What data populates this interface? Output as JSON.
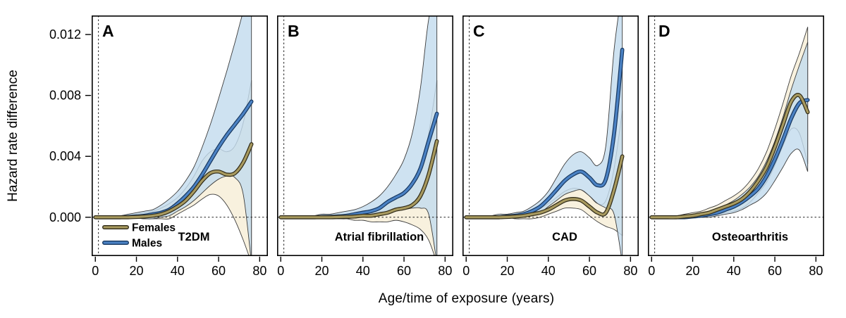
{
  "figure": {
    "background": "#ffffff"
  },
  "chart_data": {
    "type": "line",
    "title": "",
    "xlabel": "Age/time of exposure (years)",
    "ylabel": "Hazard rate difference",
    "x_ticks": [
      0,
      20,
      40,
      60,
      80
    ],
    "y_ticks": [
      0,
      0.004,
      0.008,
      0.012
    ],
    "y_tick_labels": [
      "0.000",
      "0.004",
      "0.008",
      "0.012"
    ],
    "xlim": [
      -1.8,
      84
    ],
    "ylim": [
      -0.00255,
      0.01325
    ],
    "grid": false,
    "reference_lines": {
      "horizontal_y": 0,
      "vertical_x": 1.5,
      "style": "dashed"
    },
    "legend": {
      "position": "inside-panel-A-bottom-left",
      "entries": [
        {
          "label": "Females",
          "color": "#a89a5f"
        },
        {
          "label": "Males",
          "color": "#4b82c4"
        }
      ]
    },
    "colors": {
      "female_line": "#a89a5f",
      "female_edge": "#2f2a18",
      "female_band": "#f8f1de",
      "male_line": "#4b82c4",
      "male_edge": "#16365e",
      "male_band": "#c3dcee",
      "band_edge": "#3c3c3c"
    },
    "panels": [
      {
        "letter": "A",
        "condition": "T2DM",
        "x": [
          0,
          4,
          8,
          12,
          16,
          20,
          24,
          28,
          32,
          36,
          40,
          44,
          48,
          52,
          56,
          60,
          64,
          68,
          72,
          76
        ],
        "series": [
          {
            "name": "Females",
            "y": [
              0,
              0,
              0,
              0,
              0,
              2e-05,
              5e-05,
              0.0001,
              0.0002,
              0.0004,
              0.0007,
              0.0011,
              0.0017,
              0.0024,
              0.0029,
              0.003,
              0.0028,
              0.0029,
              0.0036,
              0.0048
            ],
            "ci_lo": [
              0,
              0,
              0,
              0,
              0,
              -5e-05,
              -0.0001,
              -0.0001,
              -0.0001,
              -0.0001,
              0.0002,
              0.0005,
              0.0008,
              0.0012,
              0.0015,
              0.0014,
              0.0008,
              -0.0002,
              -0.0015,
              -0.003
            ],
            "ci_hi": [
              0.0001,
              0.0001,
              0.0001,
              0.0001,
              0.0001,
              0.0002,
              0.0003,
              0.0004,
              0.0006,
              0.0009,
              0.0013,
              0.0019,
              0.0027,
              0.0037,
              0.0043,
              0.0045,
              0.0043,
              0.0047,
              0.0062,
              0.009
            ]
          },
          {
            "name": "Males",
            "y": [
              0,
              0,
              0,
              0,
              2e-05,
              5e-05,
              0.0001,
              0.0002,
              0.0003,
              0.0005,
              0.0009,
              0.0014,
              0.002,
              0.0028,
              0.0037,
              0.0046,
              0.0054,
              0.0061,
              0.0068,
              0.0076
            ],
            "ci_lo": [
              0,
              0,
              0,
              0,
              0,
              -5e-05,
              -0.0001,
              -0.0001,
              0,
              0.0001,
              0.0004,
              0.0007,
              0.0011,
              0.0016,
              0.0021,
              0.0025,
              0.0027,
              0.0026,
              0.0015,
              -0.003
            ],
            "ci_hi": [
              0.0001,
              0.0001,
              0.0001,
              0.0001,
              0.0002,
              0.0003,
              0.0004,
              0.0005,
              0.0008,
              0.0012,
              0.0017,
              0.0024,
              0.0033,
              0.0046,
              0.0061,
              0.0078,
              0.0096,
              0.0115,
              0.0135,
              0.015
            ]
          }
        ]
      },
      {
        "letter": "B",
        "condition": "Atrial fibrillation",
        "x": [
          0,
          4,
          8,
          12,
          16,
          20,
          24,
          28,
          32,
          36,
          40,
          44,
          48,
          52,
          56,
          60,
          64,
          68,
          72,
          76
        ],
        "series": [
          {
            "name": "Females",
            "y": [
              0,
              0,
              0,
              0,
              0,
              0,
              0,
              2e-05,
              3e-05,
              5e-05,
              0.0001,
              0.0001,
              0.0002,
              0.0003,
              0.0005,
              0.0006,
              0.0008,
              0.0014,
              0.0028,
              0.005
            ],
            "ci_lo": [
              0,
              0,
              0,
              0,
              0,
              0,
              0,
              -0.0001,
              -0.0001,
              -0.0002,
              -0.0002,
              -0.0003,
              -0.0003,
              -0.0003,
              -0.0002,
              -0.0003,
              -0.0005,
              -0.0008,
              -0.0015,
              -0.003
            ],
            "ci_hi": [
              0.0001,
              0.0001,
              0.0001,
              0.0001,
              0.0001,
              0.0001,
              0.0001,
              0.0002,
              0.0002,
              0.0003,
              0.0004,
              0.0005,
              0.0007,
              0.0009,
              0.0012,
              0.0015,
              0.002,
              0.0032,
              0.0055,
              0.009
            ]
          },
          {
            "name": "Males",
            "y": [
              0,
              0,
              0,
              0,
              0,
              2e-05,
              3e-05,
              5e-05,
              0.0001,
              0.0002,
              0.0003,
              0.0004,
              0.0006,
              0.001,
              0.0013,
              0.0016,
              0.0022,
              0.0032,
              0.005,
              0.0068
            ],
            "ci_lo": [
              0,
              0,
              0,
              0,
              0,
              0,
              -0.0001,
              -0.0001,
              -0.0001,
              0,
              0.0001,
              0.0001,
              0.0002,
              0.0003,
              0.0004,
              0.0005,
              0.0006,
              0.0006,
              0.0002,
              -0.003
            ],
            "ci_hi": [
              0.0001,
              0.0001,
              0.0001,
              0.0001,
              0.0001,
              0.0002,
              0.0002,
              0.0003,
              0.0004,
              0.0005,
              0.0007,
              0.001,
              0.0014,
              0.002,
              0.0028,
              0.0038,
              0.0055,
              0.0085,
              0.013,
              0.015
            ]
          }
        ]
      },
      {
        "letter": "C",
        "condition": "CAD",
        "x": [
          0,
          4,
          8,
          12,
          16,
          20,
          24,
          28,
          32,
          36,
          40,
          44,
          48,
          52,
          56,
          60,
          64,
          68,
          72,
          76
        ],
        "series": [
          {
            "name": "Females",
            "y": [
              0,
              0,
              0,
              0,
              0,
              2e-05,
              5e-05,
              0.0001,
              0.0002,
              0.0003,
              0.0005,
              0.0008,
              0.0011,
              0.0012,
              0.0011,
              0.0007,
              0.0003,
              0.0003,
              0.0018,
              0.004
            ],
            "ci_lo": [
              0,
              0,
              0,
              0,
              0,
              0,
              -0.0001,
              -0.0001,
              -0.0001,
              0,
              0.0002,
              0.0004,
              0.0006,
              0.0006,
              0.0005,
              0.0001,
              -0.0003,
              -0.0006,
              -0.0008,
              -0.0012
            ],
            "ci_hi": [
              0.0001,
              0.0001,
              0.0001,
              0.0001,
              0.0001,
              0.0002,
              0.0002,
              0.0003,
              0.0004,
              0.0006,
              0.0009,
              0.0013,
              0.0017,
              0.0019,
              0.0018,
              0.0014,
              0.0009,
              0.0011,
              0.0032,
              0.007
            ]
          },
          {
            "name": "Males",
            "y": [
              0,
              0,
              0,
              0,
              0,
              5e-05,
              0.0001,
              0.0002,
              0.0004,
              0.0007,
              0.0012,
              0.0018,
              0.0024,
              0.0028,
              0.003,
              0.0026,
              0.0021,
              0.0025,
              0.0055,
              0.011
            ],
            "ci_lo": [
              0,
              0,
              0,
              0,
              0,
              0,
              0,
              0.0001,
              0.0002,
              0.0003,
              0.0007,
              0.0011,
              0.0015,
              0.0017,
              0.0018,
              0.0014,
              0.0009,
              0.0006,
              0.0002,
              -0.003
            ],
            "ci_hi": [
              0.0001,
              0.0001,
              0.0001,
              0.0001,
              0.0002,
              0.0002,
              0.0003,
              0.0004,
              0.0007,
              0.0011,
              0.0017,
              0.0026,
              0.0035,
              0.0041,
              0.0043,
              0.0039,
              0.0034,
              0.0047,
              0.011,
              0.015
            ]
          }
        ]
      },
      {
        "letter": "D",
        "condition": "Osteoarthritis",
        "x": [
          0,
          4,
          8,
          12,
          16,
          20,
          24,
          28,
          32,
          36,
          40,
          44,
          48,
          52,
          56,
          60,
          64,
          68,
          72,
          76
        ],
        "series": [
          {
            "name": "Females",
            "y": [
              0,
              0,
              0,
              0,
              5e-05,
              0.0001,
              0.0002,
              0.0003,
              0.0005,
              0.0007,
              0.0009,
              0.0012,
              0.0017,
              0.0024,
              0.0033,
              0.0046,
              0.0061,
              0.0076,
              0.008,
              0.0069
            ],
            "ci_lo": [
              0,
              0,
              0,
              0,
              0,
              0,
              0,
              0.0001,
              0.0002,
              0.0003,
              0.0004,
              0.0006,
              0.001,
              0.0016,
              0.0023,
              0.0034,
              0.0047,
              0.0058,
              0.0055,
              0.0035
            ],
            "ci_hi": [
              0.0001,
              0.0001,
              0.0001,
              0.0001,
              0.0002,
              0.0003,
              0.0004,
              0.0006,
              0.0008,
              0.0011,
              0.0014,
              0.0018,
              0.0024,
              0.0032,
              0.0043,
              0.0058,
              0.0075,
              0.0093,
              0.0108,
              0.0125
            ]
          },
          {
            "name": "Males",
            "y": [
              0,
              0,
              0,
              0,
              0,
              5e-05,
              0.0001,
              0.0002,
              0.0003,
              0.0005,
              0.0007,
              0.001,
              0.0014,
              0.0019,
              0.0027,
              0.0038,
              0.0051,
              0.0065,
              0.0075,
              0.0077
            ],
            "ci_lo": [
              0,
              0,
              0,
              0,
              0,
              0,
              0,
              0,
              0.0001,
              0.0002,
              0.0003,
              0.0005,
              0.0008,
              0.0011,
              0.0016,
              0.0024,
              0.0033,
              0.0042,
              0.0044,
              0.003
            ],
            "ci_hi": [
              0.0001,
              0.0001,
              0.0001,
              0.0001,
              0.0001,
              0.0002,
              0.0003,
              0.0004,
              0.0005,
              0.0008,
              0.0011,
              0.0015,
              0.002,
              0.0027,
              0.0037,
              0.005,
              0.0066,
              0.0084,
              0.01,
              0.0115
            ]
          }
        ]
      }
    ]
  }
}
